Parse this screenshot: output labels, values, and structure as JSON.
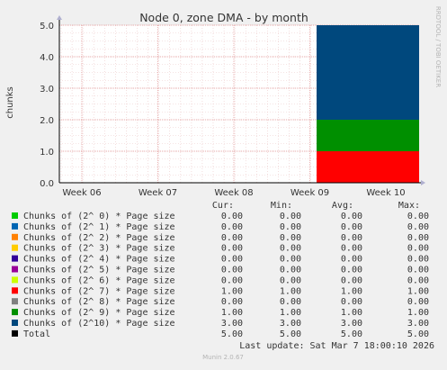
{
  "chart_data": {
    "type": "bar",
    "title": "Node 0, zone DMA - by month",
    "ylabel": "chunks",
    "side_label": "RRDTOOL / TOBI OETIKER",
    "x_ticks": [
      "Week 06",
      "Week 07",
      "Week 08",
      "Week 09",
      "Week 10"
    ],
    "y_ticks": [
      "0.0",
      "1.0",
      "2.0",
      "3.0",
      "4.0",
      "5.0"
    ],
    "ylim": [
      0,
      5
    ],
    "stacked": true,
    "grid": true,
    "series": [
      {
        "name": "Chunks of (2^ 0) * Page size",
        "color": "#00cc00",
        "value": 0,
        "cur": "0.00",
        "min": "0.00",
        "avg": "0.00",
        "max": "0.00"
      },
      {
        "name": "Chunks of (2^ 1) * Page size",
        "color": "#0066b3",
        "value": 0,
        "cur": "0.00",
        "min": "0.00",
        "avg": "0.00",
        "max": "0.00"
      },
      {
        "name": "Chunks of (2^ 2) * Page size",
        "color": "#ff8000",
        "value": 0,
        "cur": "0.00",
        "min": "0.00",
        "avg": "0.00",
        "max": "0.00"
      },
      {
        "name": "Chunks of (2^ 3) * Page size",
        "color": "#ffcc00",
        "value": 0,
        "cur": "0.00",
        "min": "0.00",
        "avg": "0.00",
        "max": "0.00"
      },
      {
        "name": "Chunks of (2^ 4) * Page size",
        "color": "#330099",
        "value": 0,
        "cur": "0.00",
        "min": "0.00",
        "avg": "0.00",
        "max": "0.00"
      },
      {
        "name": "Chunks of (2^ 5) * Page size",
        "color": "#990099",
        "value": 0,
        "cur": "0.00",
        "min": "0.00",
        "avg": "0.00",
        "max": "0.00"
      },
      {
        "name": "Chunks of (2^ 6) * Page size",
        "color": "#ccff00",
        "value": 0,
        "cur": "0.00",
        "min": "0.00",
        "avg": "0.00",
        "max": "0.00"
      },
      {
        "name": "Chunks of (2^ 7) * Page size",
        "color": "#ff0000",
        "value": 1,
        "cur": "1.00",
        "min": "1.00",
        "avg": "1.00",
        "max": "1.00"
      },
      {
        "name": "Chunks of (2^ 8) * Page size",
        "color": "#808080",
        "value": 0,
        "cur": "0.00",
        "min": "0.00",
        "avg": "0.00",
        "max": "0.00"
      },
      {
        "name": "Chunks of (2^ 9) * Page size",
        "color": "#008f00",
        "value": 1,
        "cur": "1.00",
        "min": "1.00",
        "avg": "1.00",
        "max": "1.00"
      },
      {
        "name": "Chunks of (2^10) * Page size",
        "color": "#00487d",
        "value": 3,
        "cur": "3.00",
        "min": "3.00",
        "avg": "3.00",
        "max": "3.00"
      },
      {
        "name": "Total",
        "color": "#000000",
        "value": null,
        "cur": "5.00",
        "min": "5.00",
        "avg": "5.00",
        "max": "5.00"
      }
    ],
    "columns": {
      "cur": "Cur:",
      "min": "Min:",
      "avg": "Avg:",
      "max": "Max:"
    },
    "last_update": "Last update: Sat Mar  7 18:00:10 2026",
    "footer": "Munin 2.0.67"
  }
}
